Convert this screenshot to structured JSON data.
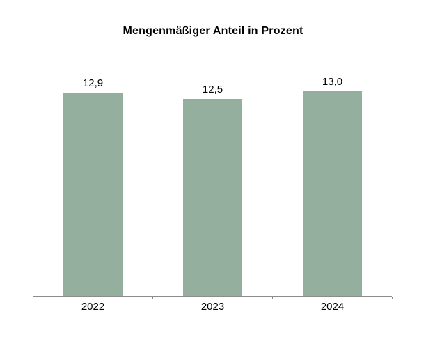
{
  "chart_data": {
    "type": "bar",
    "title": "Mengenmäßiger Anteil in Prozent",
    "categories": [
      "2022",
      "2023",
      "2024"
    ],
    "values": [
      12.9,
      12.5,
      13.0
    ],
    "value_labels": [
      "12,9",
      "12,5",
      "13,0"
    ],
    "xlabel": "",
    "ylabel": "",
    "baseline": 0,
    "y_axis_visible": false,
    "gridlines": false,
    "data_labels": true,
    "legend": false,
    "decimal_separator": ",",
    "bar_color": "#95AF9E",
    "axis_color": "#8C8C8C",
    "text_color": "#000000",
    "background_color": "#FFFFFF"
  }
}
